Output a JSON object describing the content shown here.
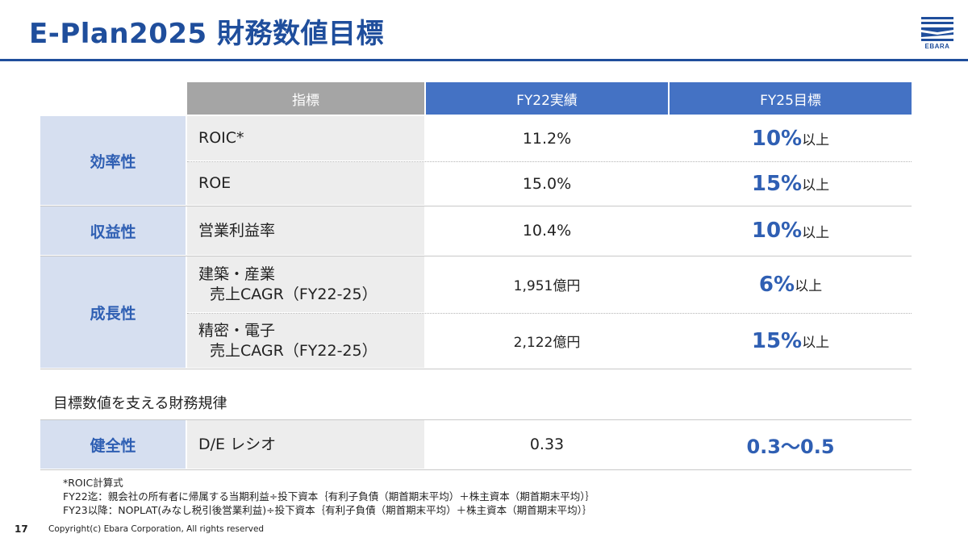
{
  "header": {
    "title": "E-Plan2025 財務数値目標",
    "logo_text": "EBARA"
  },
  "table": {
    "headers": [
      "指標",
      "FY22実績",
      "FY25目標"
    ],
    "categories": [
      "効率性",
      "収益性",
      "成長性"
    ],
    "rows": [
      {
        "metric": "ROIC*",
        "actual": "11.2%",
        "target_value": "10%",
        "target_suffix": "以上"
      },
      {
        "metric": "ROE",
        "actual": "15.0%",
        "target_value": "15%",
        "target_suffix": "以上"
      },
      {
        "metric": "営業利益率",
        "actual": "10.4%",
        "target_value": "10%",
        "target_suffix": "以上"
      },
      {
        "metric_line1": "建築・産業",
        "metric_line2": "売上CAGR（FY22-25）",
        "actual": "1,951億円",
        "target_value": "6%",
        "target_suffix": "以上"
      },
      {
        "metric_line1": "精密・電子",
        "metric_line2": "売上CAGR（FY22-25）",
        "actual": "2,122億円",
        "target_value": "15%",
        "target_suffix": "以上"
      }
    ]
  },
  "discipline": {
    "heading": "目標数値を支える財務規律",
    "category": "健全性",
    "metric": "D/E レシオ",
    "actual": "0.33",
    "target": "0.3～0.5"
  },
  "footnotes": {
    "line1": "*ROIC計算式",
    "line2": "FY22迄：親会社の所有者に帰属する当期利益÷投下資本｛有利子負債（期首期末平均）＋株主資本（期首期末平均）｝",
    "line3": "FY23以降：NOPLAT(みなし税引後営業利益)÷投下資本｛有利子負債（期首期末平均）＋株主資本（期首期末平均）｝"
  },
  "footer": {
    "page_number": "17",
    "copyright": "Copyright(c) Ebara Corporation, All rights reserved"
  },
  "colors": {
    "brand_blue": "#1f4e9c",
    "header_blue": "#4472c4",
    "header_gray": "#a5a5a5",
    "category_bg": "#d6dff0",
    "metric_bg": "#ededed"
  }
}
